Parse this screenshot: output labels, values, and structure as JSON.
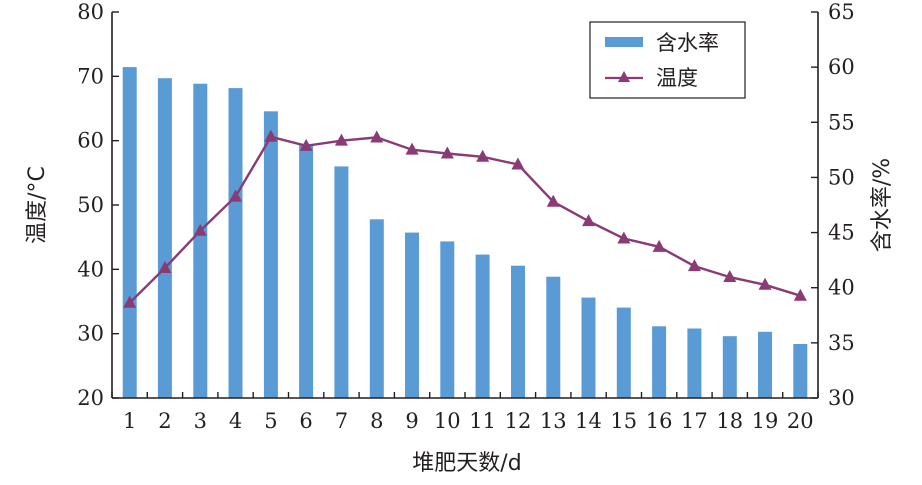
{
  "chart_data": {
    "type": "bar+line",
    "categories": [
      "1",
      "2",
      "3",
      "4",
      "5",
      "6",
      "7",
      "8",
      "9",
      "10",
      "11",
      "12",
      "13",
      "14",
      "15",
      "16",
      "17",
      "18",
      "19",
      "20"
    ],
    "xlabel": "堆肥天数/d",
    "ylabel_left": "温度/°C",
    "ylabel_right": "含水率/%",
    "ylim_left": [
      20,
      80
    ],
    "yticks_left": [
      "20",
      "30",
      "40",
      "50",
      "60",
      "70",
      "80"
    ],
    "ylim_right": [
      30,
      65
    ],
    "yticks_right": [
      "30",
      "35",
      "40",
      "45",
      "50",
      "55",
      "60",
      "65"
    ],
    "grid": false,
    "legend_position": "top-right",
    "series": [
      {
        "name": "含水率",
        "type": "bar",
        "axis": "right",
        "color": "#5b9bd5",
        "values": [
          60.0,
          59.0,
          58.5,
          58.1,
          56.0,
          53.0,
          51.0,
          46.2,
          45.0,
          44.2,
          43.0,
          42.0,
          41.0,
          39.1,
          38.2,
          36.5,
          36.3,
          35.6,
          36.0,
          34.9
        ]
      },
      {
        "name": "温度",
        "type": "line",
        "axis": "left",
        "color": "#8a3a74",
        "marker": "triangle",
        "values": [
          34.8,
          40.2,
          46.0,
          51.3,
          60.6,
          59.2,
          60.0,
          60.5,
          58.6,
          58.0,
          57.5,
          56.3,
          50.5,
          47.5,
          44.8,
          43.5,
          40.5,
          38.8,
          37.6,
          35.9
        ]
      }
    ]
  }
}
